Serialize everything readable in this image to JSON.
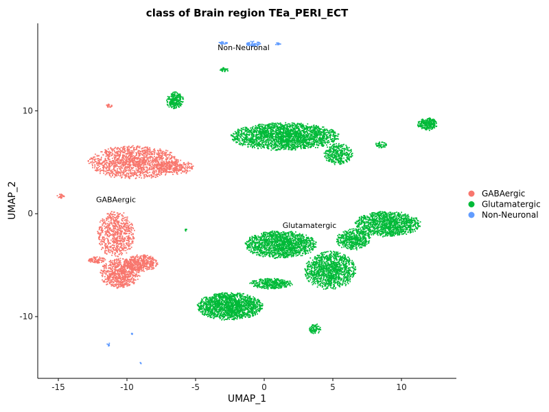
{
  "chart_data": {
    "type": "scatter",
    "title": "class of Brain region TEa_PERI_ECT",
    "xlabel": "UMAP_1",
    "ylabel": "UMAP_2",
    "xlim": [
      -16.5,
      14
    ],
    "ylim": [
      -16,
      18.5
    ],
    "xticks": [
      -15,
      -10,
      -5,
      0,
      5,
      10
    ],
    "yticks": [
      -10,
      0,
      10
    ],
    "xtick_labels": [
      "-15",
      "-10",
      "-5",
      "0",
      "5",
      "10"
    ],
    "ytick_labels": [
      "-10",
      "0",
      "10"
    ],
    "grid": false,
    "legend_position": "right",
    "series": [
      {
        "name": "GABAergic",
        "color": "#F8766D",
        "clusters": [
          {
            "cx": -9.5,
            "cy": 5.0,
            "rx": 3.2,
            "ry": 1.6,
            "n": 1400
          },
          {
            "cx": -6.5,
            "cy": 4.5,
            "rx": 1.3,
            "ry": 0.7,
            "n": 250
          },
          {
            "cx": -10.8,
            "cy": -2.0,
            "rx": 1.3,
            "ry": 2.2,
            "n": 700
          },
          {
            "cx": -10.5,
            "cy": -5.8,
            "rx": 1.4,
            "ry": 1.4,
            "n": 700
          },
          {
            "cx": -9.0,
            "cy": -4.8,
            "rx": 1.2,
            "ry": 0.8,
            "n": 400
          },
          {
            "cx": -12.2,
            "cy": -4.5,
            "rx": 0.6,
            "ry": 0.3,
            "n": 80
          },
          {
            "cx": -11.3,
            "cy": 10.5,
            "rx": 0.2,
            "ry": 0.2,
            "n": 20
          },
          {
            "cx": -14.8,
            "cy": 1.7,
            "rx": 0.3,
            "ry": 0.25,
            "n": 25
          }
        ]
      },
      {
        "name": "Glutamatergic",
        "color": "#00BA38",
        "clusters": [
          {
            "cx": 1.5,
            "cy": 7.5,
            "rx": 3.8,
            "ry": 1.3,
            "n": 2200
          },
          {
            "cx": 5.4,
            "cy": 5.8,
            "rx": 1.0,
            "ry": 1.0,
            "n": 350
          },
          {
            "cx": 1.2,
            "cy": -3.0,
            "rx": 2.5,
            "ry": 1.3,
            "n": 1500
          },
          {
            "cx": 4.8,
            "cy": -5.5,
            "rx": 1.8,
            "ry": 1.8,
            "n": 1200
          },
          {
            "cx": 9.0,
            "cy": -1.0,
            "rx": 2.3,
            "ry": 1.2,
            "n": 1200
          },
          {
            "cx": 6.5,
            "cy": -2.5,
            "rx": 1.2,
            "ry": 1.0,
            "n": 500
          },
          {
            "cx": -2.5,
            "cy": -9.0,
            "rx": 2.3,
            "ry": 1.3,
            "n": 1600
          },
          {
            "cx": 0.5,
            "cy": -6.8,
            "rx": 1.5,
            "ry": 0.5,
            "n": 350
          },
          {
            "cx": -6.5,
            "cy": 11.0,
            "rx": 0.6,
            "ry": 0.8,
            "n": 250
          },
          {
            "cx": 11.9,
            "cy": 8.7,
            "rx": 0.7,
            "ry": 0.6,
            "n": 250
          },
          {
            "cx": 8.5,
            "cy": 6.7,
            "rx": 0.4,
            "ry": 0.3,
            "n": 40
          },
          {
            "cx": 3.7,
            "cy": -11.2,
            "rx": 0.4,
            "ry": 0.5,
            "n": 80
          },
          {
            "cx": -2.9,
            "cy": 14.0,
            "rx": 0.3,
            "ry": 0.2,
            "n": 30
          },
          {
            "cx": -5.7,
            "cy": -1.6,
            "rx": 0.1,
            "ry": 0.1,
            "n": 6
          }
        ]
      },
      {
        "name": "Non-Neuronal",
        "color": "#619CFF",
        "clusters": [
          {
            "cx": -0.8,
            "cy": 16.5,
            "rx": 0.5,
            "ry": 0.25,
            "n": 60
          },
          {
            "cx": -3.0,
            "cy": 16.6,
            "rx": 0.3,
            "ry": 0.15,
            "n": 25
          },
          {
            "cx": 1.0,
            "cy": 16.5,
            "rx": 0.25,
            "ry": 0.12,
            "n": 15
          },
          {
            "cx": -11.3,
            "cy": -12.7,
            "rx": 0.15,
            "ry": 0.15,
            "n": 10
          },
          {
            "cx": -9.6,
            "cy": -11.7,
            "rx": 0.1,
            "ry": 0.1,
            "n": 6
          },
          {
            "cx": -9.0,
            "cy": -14.5,
            "rx": 0.08,
            "ry": 0.08,
            "n": 4
          }
        ]
      }
    ],
    "annotations": [
      {
        "text": "Non-Neuronal",
        "x": -1.5,
        "y": 15.9
      },
      {
        "text": "GABAergic",
        "x": -10.8,
        "y": 1.1
      },
      {
        "text": "Glutamatergic",
        "x": 3.3,
        "y": -1.4
      }
    ]
  }
}
